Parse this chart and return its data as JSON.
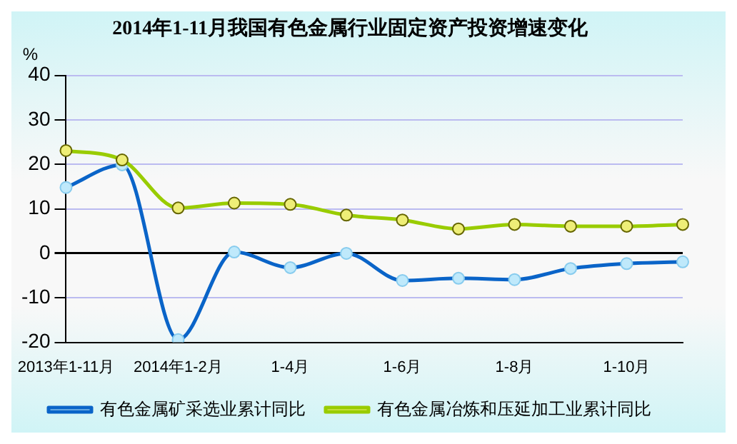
{
  "chart_data": {
    "type": "line",
    "title": "2014年1-11月我国有色金属行业固定资产投资增速变化",
    "ylabel": "%",
    "categories": [
      "2013年1-11月",
      null,
      "2014年1-2月",
      null,
      "1-4月",
      null,
      "1-6月",
      null,
      "1-8月",
      null,
      "1-10月",
      null
    ],
    "series": [
      {
        "name": "有色金属矿采选业累计同比",
        "color": "#0a64c8",
        "values": [
          14.8,
          19.9,
          -19.4,
          0.3,
          -3.2,
          0,
          -6.1,
          -5.6,
          -5.9,
          -3.4,
          -2.3,
          -1.9
        ]
      },
      {
        "name": "有色金属冶炼和压延加工业累计同比",
        "color": "#99cc00",
        "values": [
          23.1,
          21,
          10.2,
          11.3,
          11,
          8.6,
          7.5,
          5.5,
          6.5,
          6.1,
          6.1,
          6.5
        ]
      }
    ],
    "ylim": [
      -20,
      40
    ],
    "yticks": [
      -20,
      -10,
      0,
      10,
      20,
      30,
      40
    ],
    "grid": "y",
    "legend": "bottom",
    "marker": "circle",
    "line_style": "solid"
  }
}
